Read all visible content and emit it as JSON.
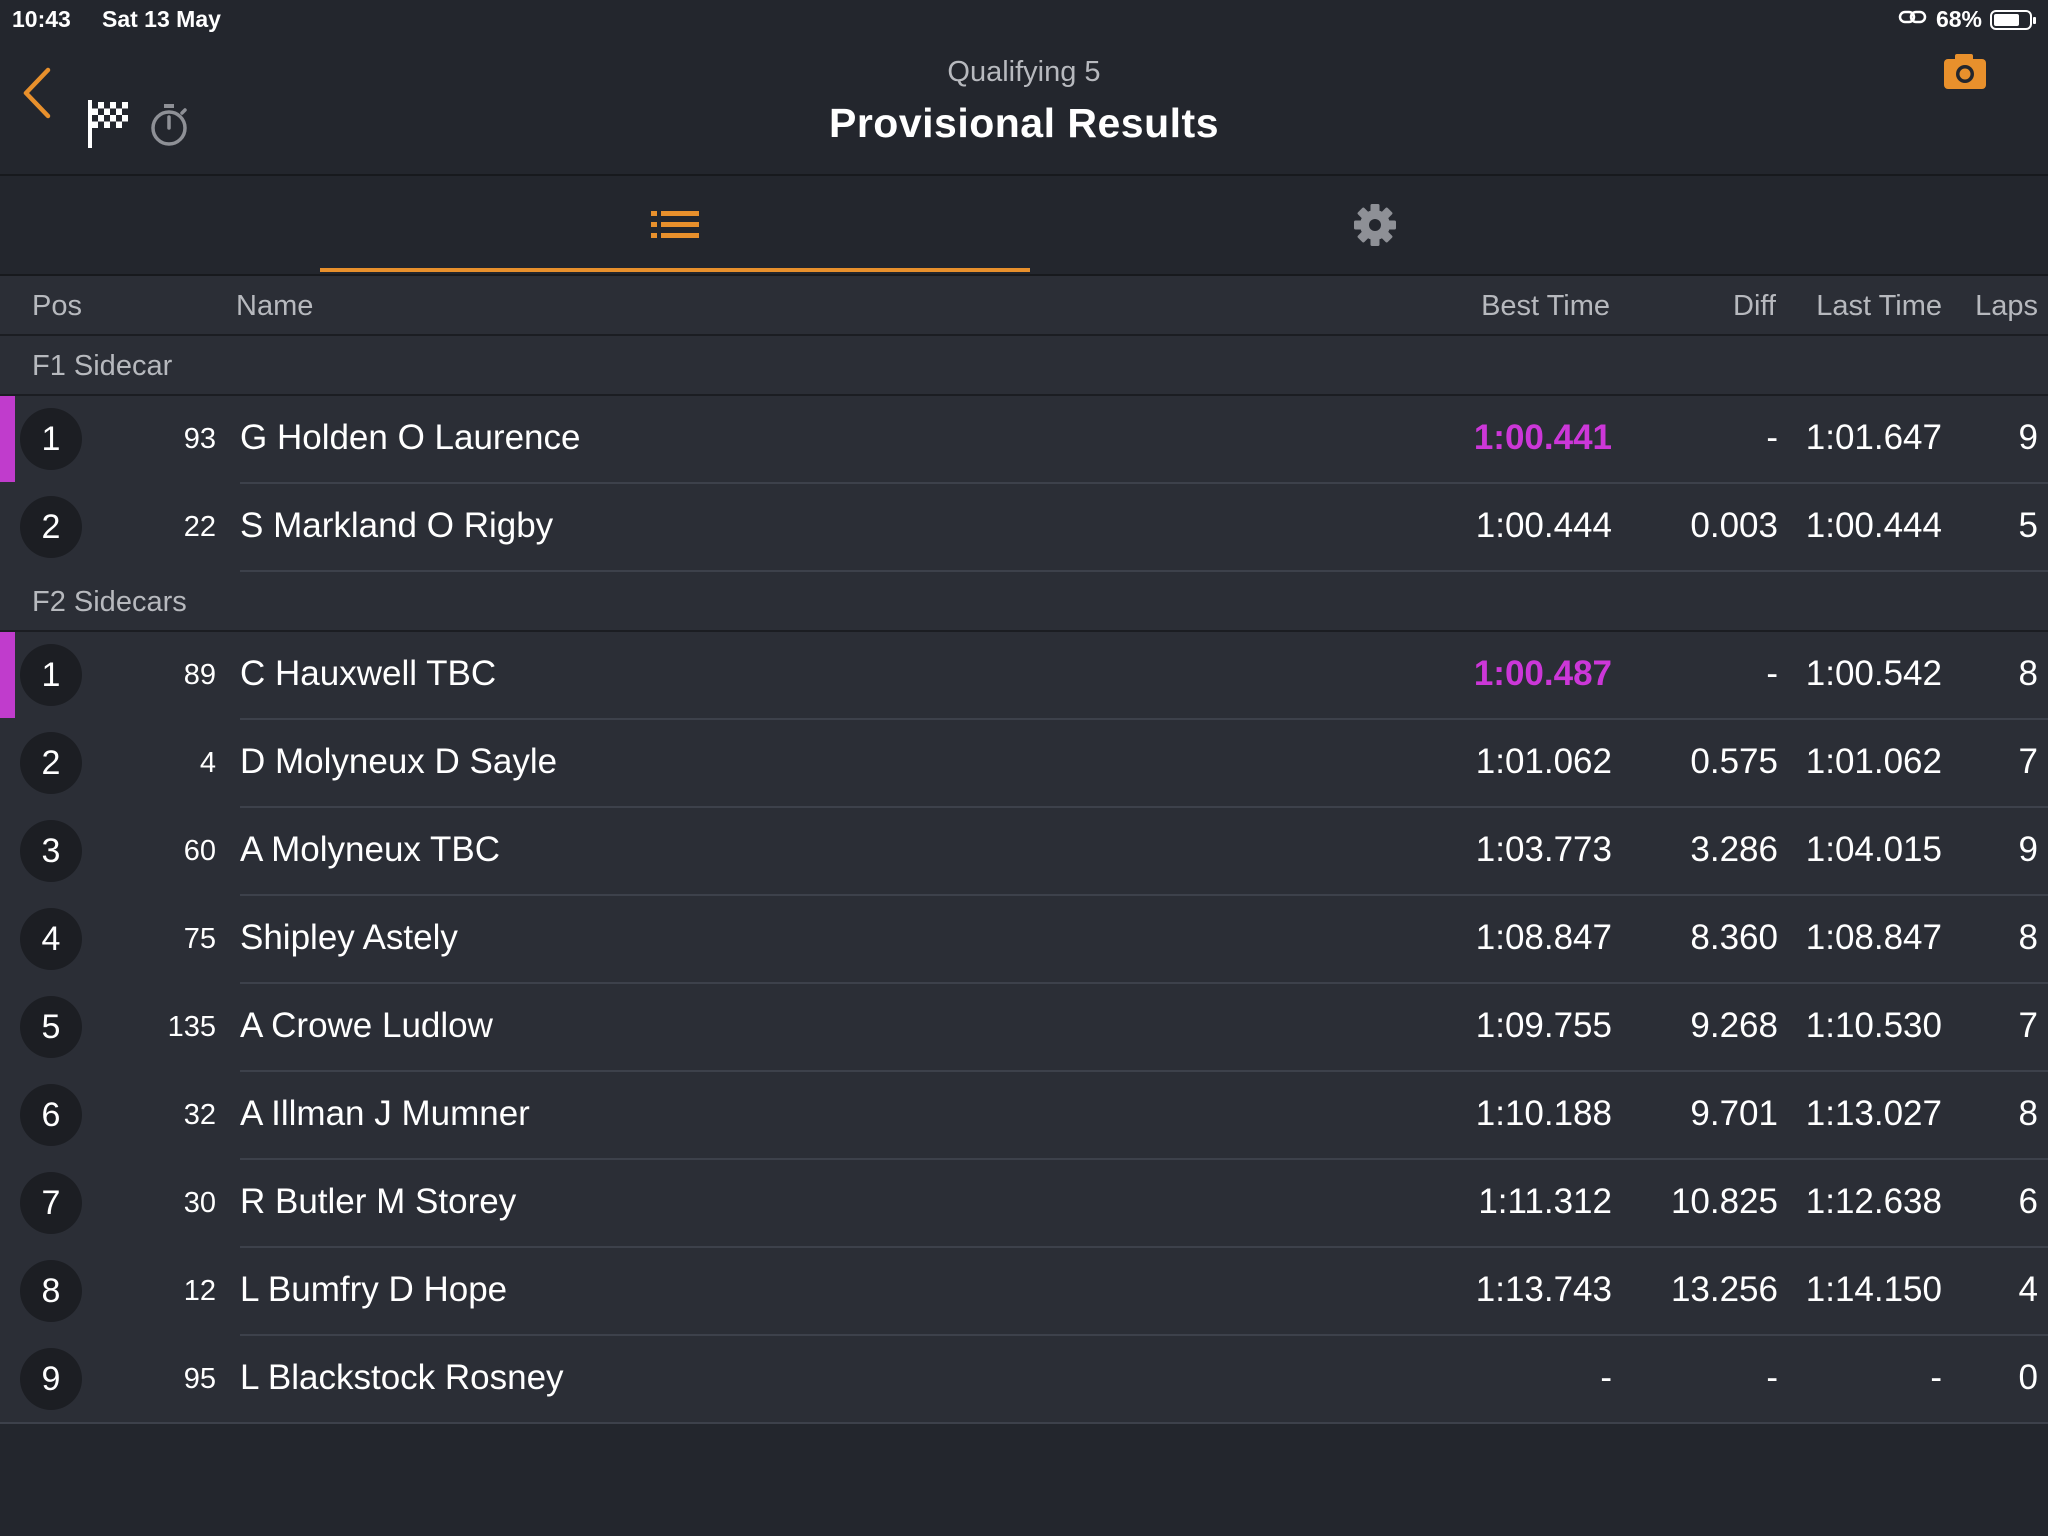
{
  "status_bar": {
    "time": "10:43",
    "date": "Sat 13 May",
    "battery_percent": "68%",
    "battery_level": 0.68
  },
  "header": {
    "subtitle": "Qualifying 5",
    "title": "Provisional Results"
  },
  "colors": {
    "accent": "#e8902c",
    "fastest": "#cc37d8",
    "background": "#23262d",
    "row": "#2b2e36"
  },
  "columns": {
    "pos": "Pos",
    "name": "Name",
    "best_time": "Best Time",
    "diff": "Diff",
    "last_time": "Last Time",
    "laps": "Laps"
  },
  "groups": [
    {
      "name": "F1 Sidecar",
      "rows": [
        {
          "pos": "1",
          "num": "93",
          "name": "G Holden O Laurence",
          "best": "1:00.441",
          "diff": "-",
          "last": "1:01.647",
          "laps": "9",
          "fastest": true
        },
        {
          "pos": "2",
          "num": "22",
          "name": "S Markland O Rigby",
          "best": "1:00.444",
          "diff": "0.003",
          "last": "1:00.444",
          "laps": "5",
          "fastest": false
        }
      ]
    },
    {
      "name": "F2 Sidecars",
      "rows": [
        {
          "pos": "1",
          "num": "89",
          "name": "C Hauxwell TBC",
          "best": "1:00.487",
          "diff": "-",
          "last": "1:00.542",
          "laps": "8",
          "fastest": true
        },
        {
          "pos": "2",
          "num": "4",
          "name": "D Molyneux D Sayle",
          "best": "1:01.062",
          "diff": "0.575",
          "last": "1:01.062",
          "laps": "7",
          "fastest": false
        },
        {
          "pos": "3",
          "num": "60",
          "name": "A Molyneux TBC",
          "best": "1:03.773",
          "diff": "3.286",
          "last": "1:04.015",
          "laps": "9",
          "fastest": false
        },
        {
          "pos": "4",
          "num": "75",
          "name": "Shipley Astely",
          "best": "1:08.847",
          "diff": "8.360",
          "last": "1:08.847",
          "laps": "8",
          "fastest": false
        },
        {
          "pos": "5",
          "num": "135",
          "name": "A Crowe Ludlow",
          "best": "1:09.755",
          "diff": "9.268",
          "last": "1:10.530",
          "laps": "7",
          "fastest": false
        },
        {
          "pos": "6",
          "num": "32",
          "name": "A Illman J Mumner",
          "best": "1:10.188",
          "diff": "9.701",
          "last": "1:13.027",
          "laps": "8",
          "fastest": false
        },
        {
          "pos": "7",
          "num": "30",
          "name": "R Butler M Storey",
          "best": "1:11.312",
          "diff": "10.825",
          "last": "1:12.638",
          "laps": "6",
          "fastest": false
        },
        {
          "pos": "8",
          "num": "12",
          "name": "L Bumfry D Hope",
          "best": "1:13.743",
          "diff": "13.256",
          "last": "1:14.150",
          "laps": "4",
          "fastest": false
        },
        {
          "pos": "9",
          "num": "95",
          "name": "L Blackstock Rosney",
          "best": "-",
          "diff": "-",
          "last": "-",
          "laps": "0",
          "fastest": false
        }
      ]
    }
  ],
  "icons": {
    "back": "chevron-left-icon",
    "flag": "checkered-flag-icon",
    "stopwatch": "stopwatch-icon",
    "camera": "camera-icon",
    "list_tab": "list-icon",
    "settings_tab": "gear-icon",
    "battery": "battery-icon",
    "link": "link-icon"
  }
}
